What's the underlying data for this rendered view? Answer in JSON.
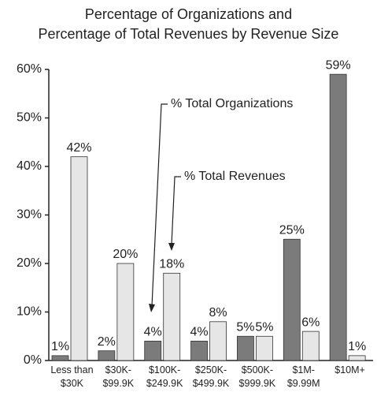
{
  "chart_data": {
    "type": "bar",
    "title": "Percentage of Organizations and\nPercentage of Total Revenues by Revenue Size",
    "categories": [
      "Less than\n$30K",
      "$30K-\n$99.9K",
      "$100K-\n$249.9K",
      "$250K-\n$499.9K",
      "$500K-\n$999.9K",
      "$1M-\n$9.99M",
      "$10M+"
    ],
    "series": [
      {
        "name": "% Total Organizations",
        "color": "#7b7b7b",
        "values": [
          1,
          2,
          4,
          4,
          5,
          25,
          59
        ],
        "value_labels": [
          "1%",
          "2%",
          "4%",
          "4%",
          "5%",
          "25%",
          "59%"
        ]
      },
      {
        "name": "% Total Revenues",
        "color": "#e6e6e6",
        "values": [
          42,
          20,
          18,
          8,
          5,
          6,
          1
        ],
        "value_labels": [
          "42%",
          "20%",
          "18%",
          "8%",
          "5%",
          "6%",
          "1%"
        ]
      }
    ],
    "ylim": [
      0,
      60
    ],
    "yticks": [
      {
        "value": 0,
        "label": "0%"
      },
      {
        "value": 10,
        "label": "10%"
      },
      {
        "value": 20,
        "label": "20%"
      },
      {
        "value": 30,
        "label": "30%"
      },
      {
        "value": 40,
        "label": "40%"
      },
      {
        "value": 50,
        "label": "50%"
      },
      {
        "value": 60,
        "label": "60%"
      }
    ]
  }
}
